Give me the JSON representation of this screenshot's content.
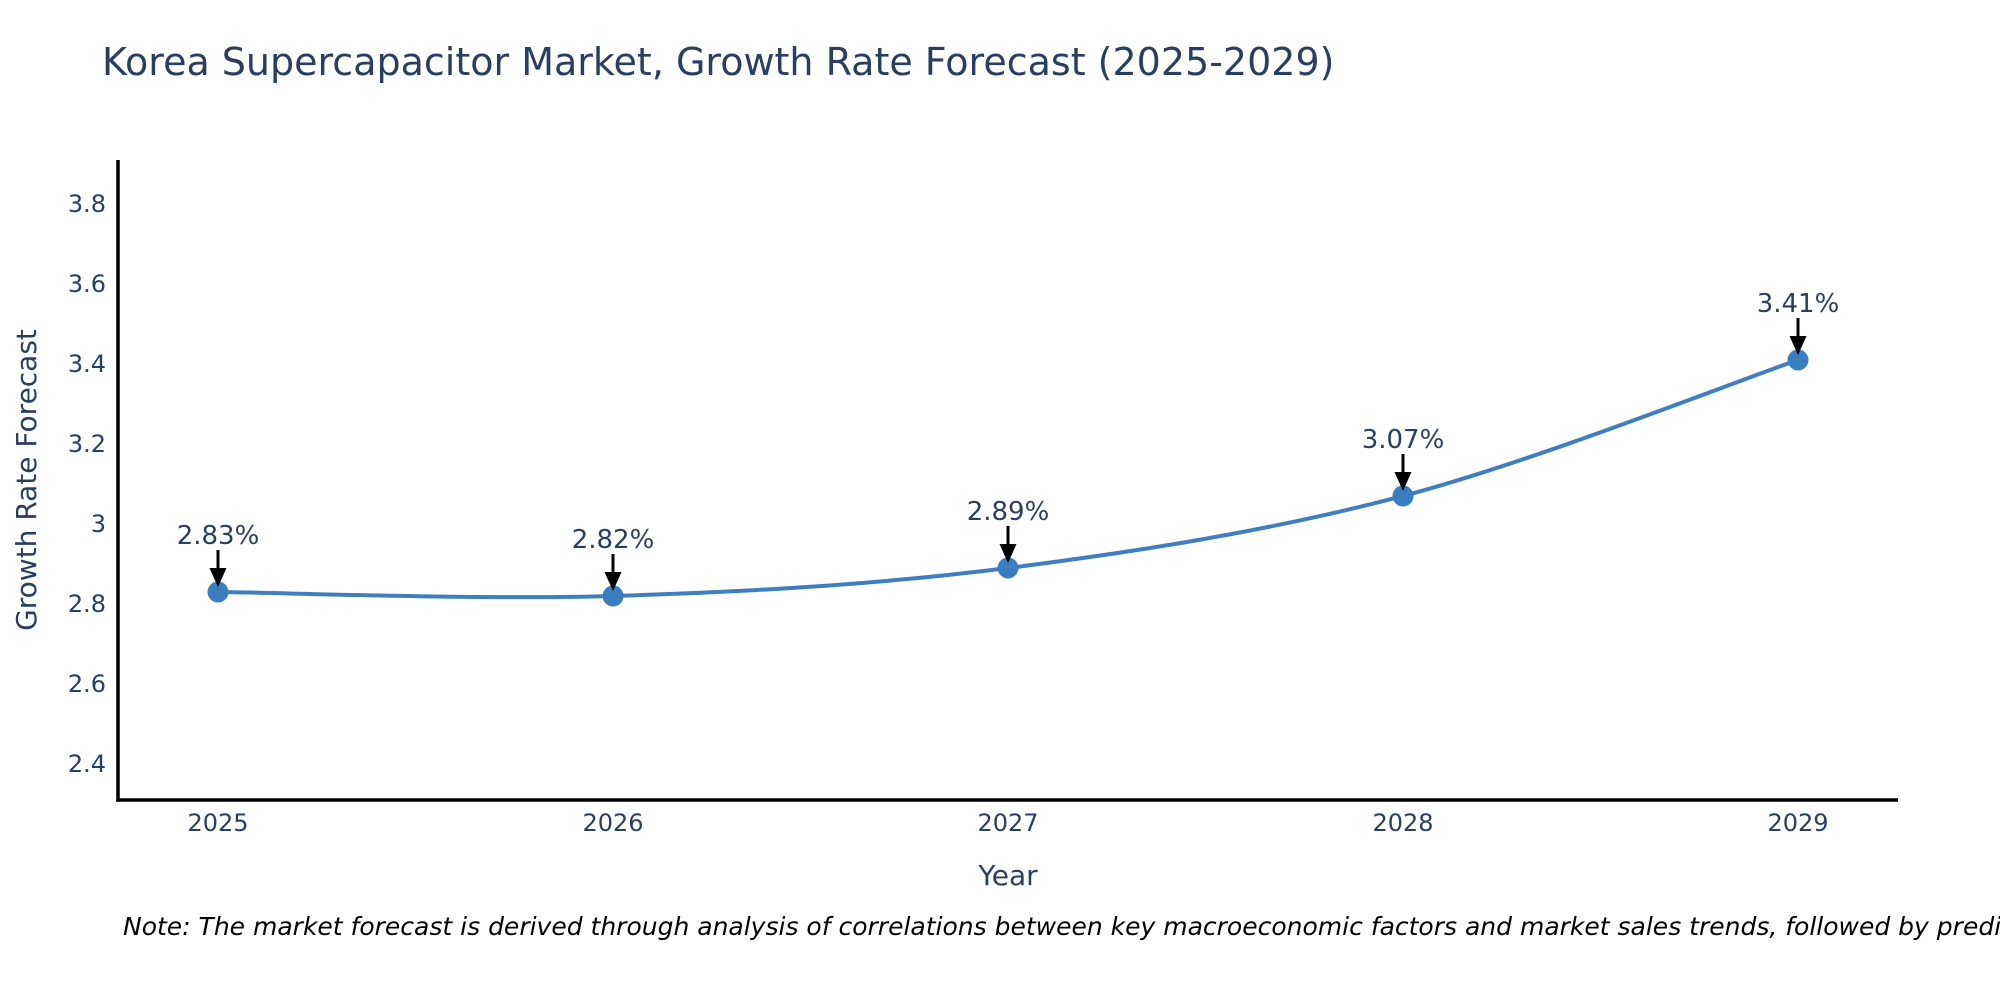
{
  "chart_data": {
    "type": "line",
    "title": "Korea Supercapacitor Market, Growth Rate Forecast (2025-2029)",
    "xlabel": "Year",
    "ylabel": "Growth Rate Forecast",
    "categories": [
      "2025",
      "2026",
      "2027",
      "2028",
      "2029"
    ],
    "values": [
      2.83,
      2.82,
      2.89,
      3.07,
      3.41
    ],
    "point_labels": [
      "2.83%",
      "2.82%",
      "2.89%",
      "3.07%",
      "3.41%"
    ],
    "yticks": [
      2.4,
      2.6,
      2.8,
      3,
      3.2,
      3.4,
      3.6,
      3.8
    ],
    "ytick_labels": [
      "2.4",
      "2.6",
      "2.8",
      "3",
      "3.2",
      "3.4",
      "3.6",
      "3.8"
    ],
    "yrange": [
      2.31,
      3.91
    ],
    "grid": false,
    "legend": "none",
    "smooth": true,
    "line_color": "#3f7fbf",
    "marker_color": "#3a7ebf",
    "axis_color": "#000000",
    "text_color": "#2a3f5f",
    "annotation_color": "#2a3f5f",
    "annotation_arrow_color": "#000000"
  },
  "note": "Note: The market forecast is derived through analysis of correlations between key macroeconomic factors and market sales trends, followed by predictive modeling to project future sales"
}
